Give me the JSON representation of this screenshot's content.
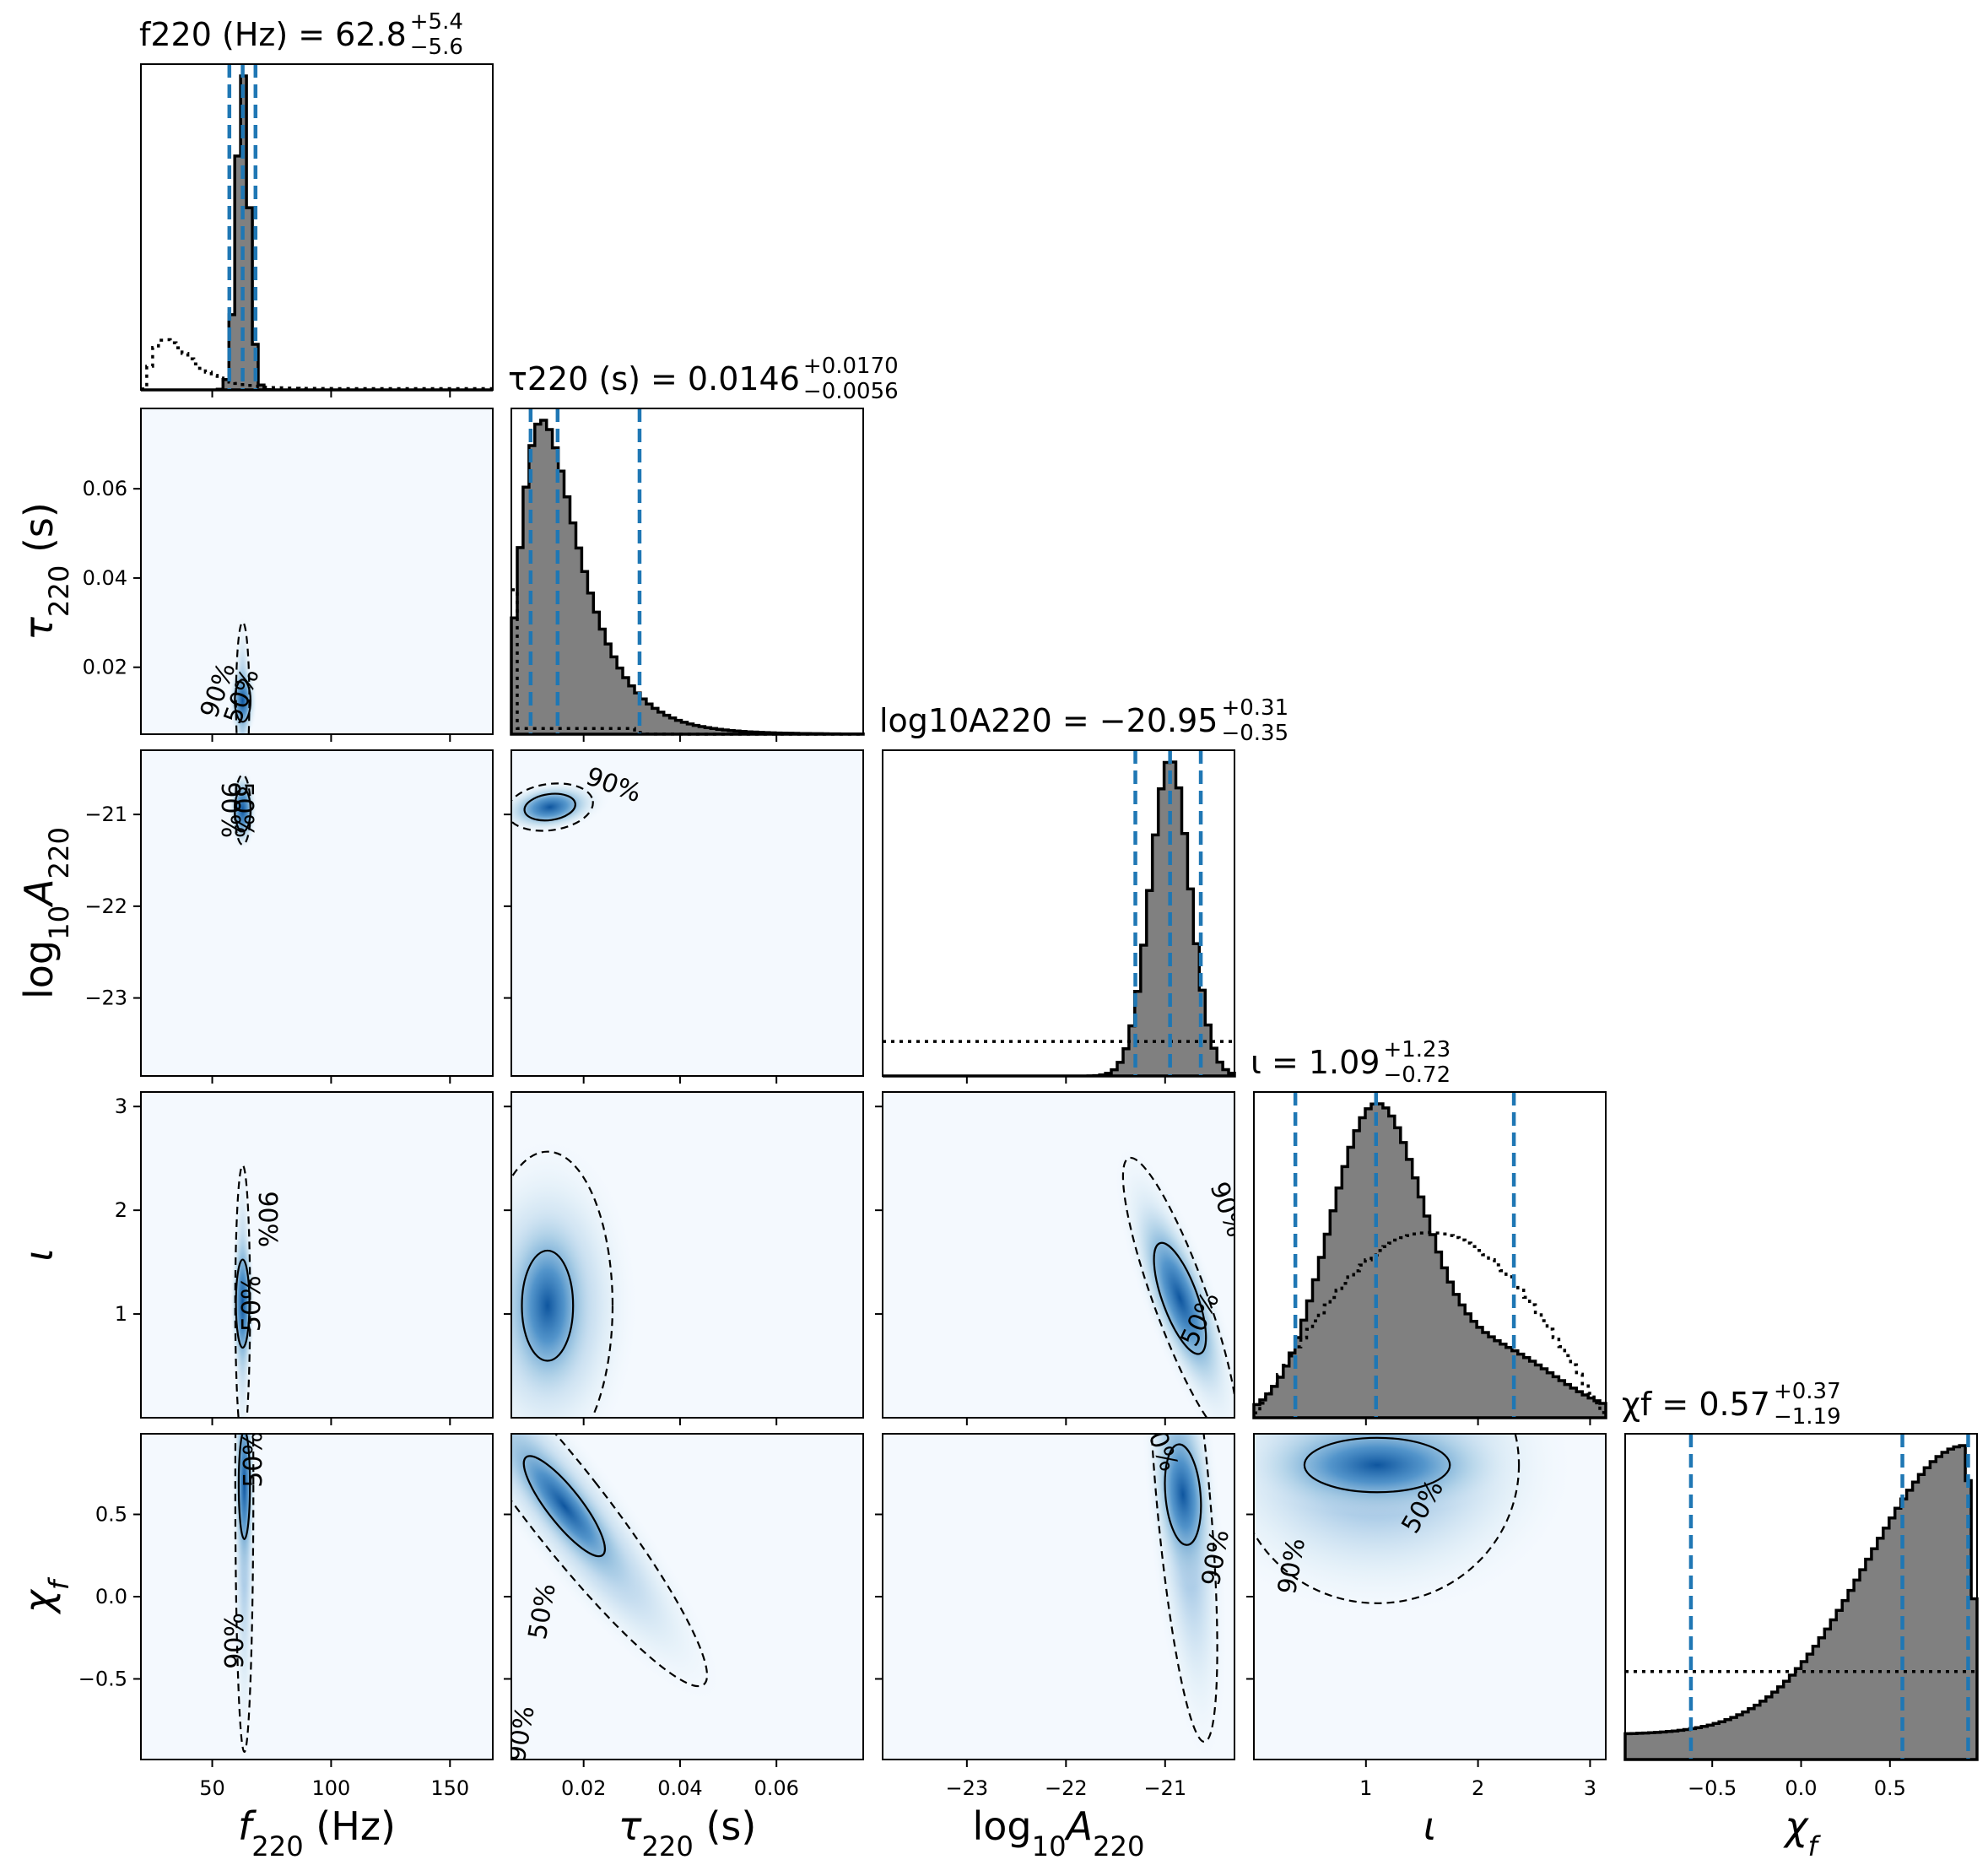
{
  "figure": {
    "type": "corner-plot",
    "colors": {
      "density": "#08519c",
      "quantile": "#1f77b4",
      "hist_fill": "#808080",
      "outline": "#000000"
    }
  },
  "chart_data": {
    "type": "corner",
    "parameters": [
      {
        "key": "f220",
        "axis_label": "f220 (Hz)",
        "title": {
          "prefix": "f220 (Hz) = 62.8",
          "plus": "+5.4",
          "minus": "−5.6"
        },
        "median": 62.8,
        "lower_err": 5.6,
        "upper_err": 5.4,
        "range": [
          20,
          168
        ],
        "ticks": [
          50,
          100,
          150
        ],
        "tick_labels": [
          "50",
          "100",
          "150"
        ],
        "quantile_lines": [
          57.2,
          62.8,
          68.2
        ]
      },
      {
        "key": "tau220",
        "axis_label": "τ220 (s)",
        "title": {
          "prefix": "τ220 (s) = 0.0146",
          "plus": "+0.0170",
          "minus": "−0.0056"
        },
        "median": 0.0146,
        "lower_err": 0.0056,
        "upper_err": 0.017,
        "range": [
          0.005,
          0.078
        ],
        "ticks": [
          0.02,
          0.04,
          0.06
        ],
        "tick_labels": [
          "0.02",
          "0.04",
          "0.06"
        ],
        "quantile_lines": [
          0.009,
          0.0146,
          0.0316
        ]
      },
      {
        "key": "logA220",
        "axis_label": "log10A220",
        "title": {
          "prefix": "log10A220 = −20.95",
          "plus": "+0.31",
          "minus": "−0.35"
        },
        "median": -20.95,
        "lower_err": 0.35,
        "upper_err": 0.31,
        "range": [
          -23.85,
          -20.3
        ],
        "ticks": [
          -23,
          -22,
          -21
        ],
        "tick_labels": [
          "−23",
          "−22",
          "−21"
        ],
        "quantile_lines": [
          -21.3,
          -20.95,
          -20.64
        ]
      },
      {
        "key": "iota",
        "axis_label": "ι",
        "title": {
          "prefix": "ι = 1.09",
          "plus": "+1.23",
          "minus": "−0.72"
        },
        "median": 1.09,
        "lower_err": 0.72,
        "upper_err": 1.23,
        "range": [
          0.0,
          3.14
        ],
        "ticks": [
          1,
          2,
          3
        ],
        "tick_labels": [
          "1",
          "2",
          "3"
        ],
        "quantile_lines": [
          0.37,
          1.09,
          2.32
        ]
      },
      {
        "key": "chi_f",
        "axis_label": "χf",
        "title": {
          "prefix": "χf = 0.57",
          "plus": "+0.37",
          "minus": "−1.19"
        },
        "median": 0.57,
        "lower_err": 1.19,
        "upper_err": 0.37,
        "range": [
          -0.99,
          0.99
        ],
        "ticks": [
          -0.5,
          0.0,
          0.5
        ],
        "tick_labels": [
          "−0.5",
          "0.0",
          "0.5"
        ],
        "quantile_lines": [
          -0.62,
          0.57,
          0.94
        ]
      }
    ],
    "contour_levels": [
      "50%",
      "90%"
    ],
    "posterior_1d": {
      "f220": {
        "type": "gaussian",
        "center": 62.8,
        "sigma": 2.6
      },
      "tau220": {
        "type": "lognormal",
        "peak": 0.0115,
        "median": 0.0146,
        "sigma": 0.5
      },
      "logA220": {
        "type": "gaussian",
        "center": -20.95,
        "sigma": 0.2
      },
      "iota": {
        "type": "mixture",
        "components": [
          [
            0.82,
            1.08,
            0.42
          ],
          [
            0.18,
            2.15,
            0.55
          ]
        ]
      },
      "chi_f": {
        "type": "rising",
        "peak": 0.93
      }
    },
    "prior_1d": {
      "f220": {
        "type": "skewed",
        "peak": 30,
        "decay": "long"
      },
      "tau220": {
        "type": "plateau",
        "from": 0.006,
        "to": 0.03
      },
      "logA220": {
        "type": "flat"
      },
      "iota": {
        "type": "sin"
      },
      "chi_f": {
        "type": "flat"
      }
    }
  }
}
